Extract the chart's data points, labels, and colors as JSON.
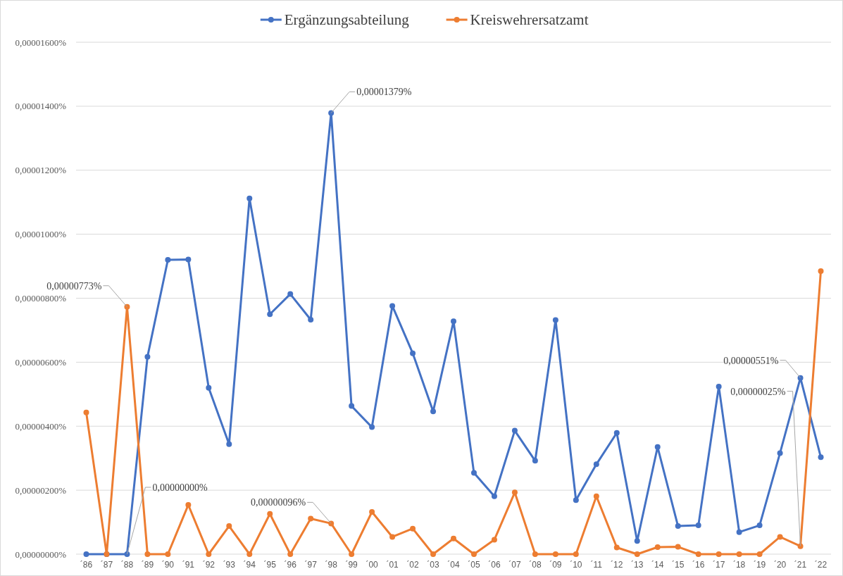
{
  "chart_data": {
    "type": "line",
    "categories": [
      "´86",
      "´87",
      "´88",
      "´89",
      "´90",
      "´91",
      "´92",
      "´93",
      "´94",
      "´95",
      "´96",
      "´97",
      "´98",
      "´99",
      "´00",
      "´01",
      "´02",
      "´03",
      "´04",
      "´05",
      "´06",
      "´07",
      "´08",
      "´09",
      "´10",
      "´11",
      "´12",
      "´13",
      "´14",
      "´15",
      "´16",
      "´17",
      "´18",
      "´19",
      "´20",
      "´21",
      "´22"
    ],
    "series": [
      {
        "name": "Ergänzungsabteilung",
        "color": "#4472c4",
        "values": [
          0,
          0,
          0.0,
          6.17e-06,
          9.2e-06,
          9.21e-06,
          5.2e-06,
          3.44e-06,
          1.112e-05,
          7.5e-06,
          8.13e-06,
          7.33e-06,
          1.379e-05,
          4.63e-06,
          3.97e-06,
          7.76e-06,
          6.28e-06,
          4.46e-06,
          7.28e-06,
          2.54e-06,
          1.81e-06,
          3.86e-06,
          2.92e-06,
          7.32e-06,
          1.69e-06,
          2.81e-06,
          3.79e-06,
          4.1e-07,
          3.35e-06,
          8.8e-07,
          9e-07,
          5.24e-06,
          6.9e-07,
          9e-07,
          3.16e-06,
          5.51e-06,
          3.03e-06
        ],
        "value_labels": [
          null,
          null,
          "0,00000000%",
          null,
          null,
          null,
          null,
          null,
          null,
          null,
          null,
          null,
          "0,00001379%",
          null,
          null,
          null,
          null,
          null,
          null,
          null,
          null,
          null,
          null,
          null,
          null,
          null,
          null,
          null,
          null,
          null,
          null,
          null,
          null,
          null,
          null,
          "0,00000551%",
          null
        ]
      },
      {
        "name": "Kreiswehrersatzamt",
        "color": "#ed7d31",
        "values": [
          4.43e-06,
          0,
          7.73e-06,
          0,
          0,
          1.54e-06,
          0,
          8.8e-07,
          0,
          1.26e-06,
          0,
          1.11e-06,
          9.6e-07,
          0,
          1.32e-06,
          5.4e-07,
          8e-07,
          0,
          4.9e-07,
          0,
          4.5e-07,
          1.93e-06,
          0,
          0,
          0,
          1.81e-06,
          2.1e-07,
          0,
          2.2e-07,
          2.3e-07,
          0,
          0,
          0,
          0,
          5.4e-07,
          2.5e-07,
          8.85e-06
        ],
        "value_labels": [
          null,
          null,
          "0,00000773%",
          null,
          null,
          null,
          null,
          null,
          null,
          null,
          null,
          null,
          "0,00000096%",
          null,
          null,
          null,
          null,
          null,
          null,
          null,
          null,
          null,
          null,
          null,
          null,
          null,
          null,
          null,
          null,
          null,
          null,
          null,
          null,
          null,
          null,
          "0,00000025%",
          null
        ]
      }
    ],
    "ylim": [
      0,
      1.6e-05
    ],
    "yticks": [
      {
        "value": 0,
        "label": "0,00000000%"
      },
      {
        "value": 2e-06,
        "label": "0,00000200%"
      },
      {
        "value": 4e-06,
        "label": "0,00000400%"
      },
      {
        "value": 6e-06,
        "label": "0,00000600%"
      },
      {
        "value": 8e-06,
        "label": "0,00000800%"
      },
      {
        "value": 1e-05,
        "label": "0,00001000%"
      },
      {
        "value": 1.2e-05,
        "label": "0,00001200%"
      },
      {
        "value": 1.4e-05,
        "label": "0,00001400%"
      },
      {
        "value": 1.6e-05,
        "label": "0,00001600%"
      }
    ],
    "grid": "y",
    "legend": "top",
    "marker": "circle",
    "line_style": "solid"
  }
}
